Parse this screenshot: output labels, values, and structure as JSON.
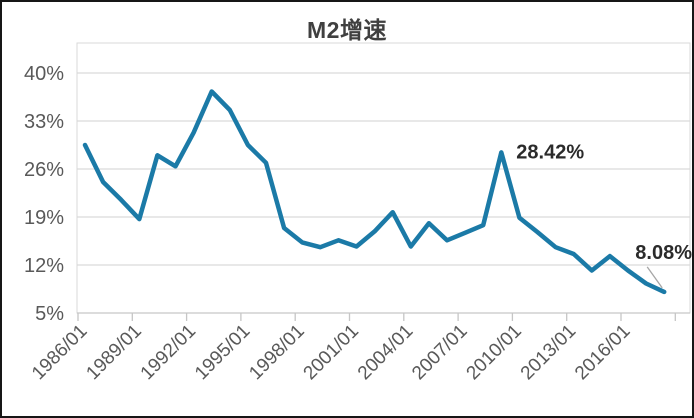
{
  "title": "M2增速",
  "colors": {
    "line": "#1b7aa7",
    "grid": "#d9d9d9",
    "axis": "#c6c6c6",
    "tick_label": "#595959",
    "title": "#404040",
    "annotation": "#2b2b2b",
    "leader_line": "#a6a6a6",
    "background": "#ffffff",
    "frame_border": "#161616"
  },
  "chart_data": {
    "type": "line",
    "title": "M2增速",
    "x": [
      1986,
      1987,
      1988,
      1989,
      1990,
      1991,
      1992,
      1993,
      1994,
      1995,
      1996,
      1997,
      1998,
      1999,
      2000,
      2001,
      2002,
      2003,
      2004,
      2005,
      2006,
      2007,
      2008,
      2009,
      2010,
      2011,
      2012,
      2013,
      2014,
      2015,
      2016,
      2017,
      2018
    ],
    "series": [
      {
        "name": "M2增速",
        "values": [
          29.5,
          24.1,
          21.5,
          18.7,
          28.0,
          26.4,
          31.3,
          37.3,
          34.6,
          29.5,
          26.9,
          17.4,
          15.3,
          14.6,
          15.6,
          14.7,
          16.9,
          19.7,
          14.7,
          18.1,
          15.6,
          16.7,
          17.8,
          28.42,
          18.9,
          16.8,
          14.6,
          13.6,
          11.2,
          13.3,
          11.2,
          9.3,
          8.08
        ]
      }
    ],
    "x_tick_labels": [
      "1986/01",
      "1989/01",
      "1992/01",
      "1995/01",
      "1998/01",
      "2001/01",
      "2004/01",
      "2007/01",
      "2010/01",
      "2013/01",
      "2016/01"
    ],
    "x_tick_step_years": 3,
    "y_ticks": [
      5,
      12,
      19,
      26,
      33,
      40
    ],
    "y_tick_labels": [
      "5%",
      "12%",
      "19%",
      "26%",
      "33%",
      "40%"
    ],
    "ylim": [
      5,
      40
    ],
    "grid": true,
    "legend": false,
    "annotations": [
      {
        "x": 2009,
        "value": 28.42,
        "label": "28.42%",
        "leader_line": false
      },
      {
        "x": 2018,
        "value": 8.08,
        "label": "8.08%",
        "leader_line": true
      }
    ]
  }
}
